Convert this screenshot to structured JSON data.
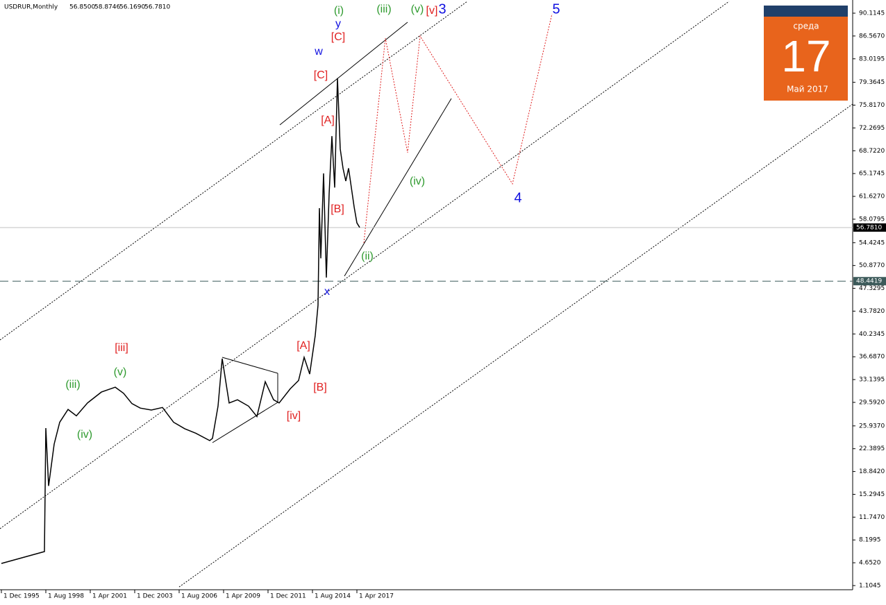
{
  "chart_data": {
    "type": "line",
    "title": "USDRUR,Monthly",
    "header_values": [
      {
        "value": 56.85,
        "label": "56.8500"
      },
      {
        "value": 58.8746,
        "label": "58.8746"
      },
      {
        "value": 56.169,
        "label": "56.1690"
      },
      {
        "value": 56.781,
        "label": "56.7810"
      }
    ],
    "x": [
      0,
      31,
      32,
      34,
      38,
      42,
      48,
      54,
      62,
      72,
      82,
      88,
      94,
      100,
      108,
      116,
      124,
      132,
      140,
      150,
      152,
      156,
      159,
      164,
      170,
      178,
      184,
      190,
      196,
      200,
      208,
      214,
      218,
      222,
      226,
      228,
      229,
      230,
      232,
      234,
      236,
      238,
      240,
      242,
      244,
      246,
      248,
      250,
      252,
      254,
      256,
      258
    ],
    "series": [
      {
        "name": "USDRUR",
        "color": "#000000",
        "values": [
          4.55,
          6.39,
          25.6,
          16.6,
          23.1,
          26.5,
          28.5,
          27.5,
          29.5,
          31.2,
          31.95,
          31,
          29.4,
          28.7,
          28.4,
          28.8,
          26.5,
          25.5,
          24.8,
          23.65,
          24,
          29,
          36.4,
          29.5,
          30,
          29,
          27.4,
          32.8,
          30,
          29.5,
          31.7,
          33,
          36.6,
          34,
          40,
          44.7,
          59.8,
          52,
          65.2,
          49,
          62,
          71,
          63,
          80,
          69,
          66,
          64,
          66,
          63,
          60,
          57.5,
          56.8
        ]
      }
    ],
    "xlim": [
      -1,
      613
    ],
    "xticks": [
      {
        "value": 0,
        "label": "1 Dec 1995"
      },
      {
        "value": 32,
        "label": "1 Aug 1998"
      },
      {
        "value": 64,
        "label": "1 Apr 2001"
      },
      {
        "value": 96,
        "label": "1 Dec 2003"
      },
      {
        "value": 128,
        "label": "1 Aug 2006"
      },
      {
        "value": 160,
        "label": "1 Apr 2009"
      },
      {
        "value": 192,
        "label": "1 Dec 2011"
      },
      {
        "value": 224,
        "label": "1 Aug 2014"
      },
      {
        "value": 256,
        "label": "1 Apr 2017"
      }
    ],
    "ylim": [
      1.1045,
      90.1145
    ],
    "yticks": [
      90.1145,
      {
        "value": 86.567,
        "label": "86.5670"
      },
      83.0195,
      79.3645,
      {
        "value": 75.817,
        "label": "75.8170"
      },
      72.2695,
      {
        "value": 68.722,
        "label": "68.7220"
      },
      65.1745,
      {
        "value": 61.627,
        "label": "61.6270"
      },
      58.0795,
      54.4245,
      {
        "value": 50.877,
        "label": "50.8770"
      },
      47.3295,
      {
        "value": 43.782,
        "label": "43.7820"
      },
      40.2345,
      {
        "value": 36.687,
        "label": "36.6870"
      },
      33.1395,
      {
        "value": 29.592,
        "label": "29.5920"
      },
      {
        "value": 25.937,
        "label": "25.9370"
      },
      22.3895,
      {
        "value": 18.842,
        "label": "18.8420"
      },
      15.2945,
      {
        "value": 11.747,
        "label": "11.7470"
      },
      8.1995,
      {
        "value": 4.652,
        "label": "4.6520"
      },
      1.1045
    ],
    "price_lines": [
      {
        "value": 56.781,
        "label": "56.7810",
        "style": "solid",
        "color": "#c0c0c0"
      },
      {
        "value": 48.4419,
        "style": "dashed",
        "color": "#3c5a5a"
      }
    ],
    "annotations": [
      {
        "text": "(i)",
        "color": "#2e9a2e"
      },
      {
        "text": "(iii)",
        "color": "#2e9a2e"
      },
      {
        "text": "(v)",
        "color": "#2e9a2e"
      },
      {
        "text": "[v]",
        "color": "#e02020"
      },
      {
        "text": "3",
        "color": "#1010e0"
      },
      {
        "text": "5",
        "color": "#1010e0"
      },
      {
        "text": "y",
        "color": "#1010e0"
      },
      {
        "text": "[C]",
        "color": "#e02020"
      },
      {
        "text": "w",
        "color": "#1010e0"
      },
      {
        "text": "[C]",
        "color": "#e02020"
      },
      {
        "text": "[A]",
        "color": "#e02020"
      },
      {
        "text": "(iv)",
        "color": "#2e9a2e"
      },
      {
        "text": "4",
        "color": "#1010e0"
      },
      {
        "text": "[B]",
        "color": "#e02020"
      },
      {
        "text": "(ii)",
        "color": "#2e9a2e"
      },
      {
        "text": "x",
        "color": "#1010e0"
      },
      {
        "text": "[iii]",
        "color": "#e02020"
      },
      {
        "text": "(iii)",
        "color": "#2e9a2e"
      },
      {
        "text": "(v)",
        "color": "#2e9a2e"
      },
      {
        "text": "(iv)",
        "color": "#2e9a2e"
      },
      {
        "text": "[A]",
        "color": "#e02020"
      },
      {
        "text": "[B]",
        "color": "#e02020"
      },
      {
        "text": "[iv]",
        "color": "#e02020"
      }
    ]
  },
  "calendar_widget": {
    "weekday": "среда",
    "day": "17",
    "month_year": "Май 2017"
  }
}
